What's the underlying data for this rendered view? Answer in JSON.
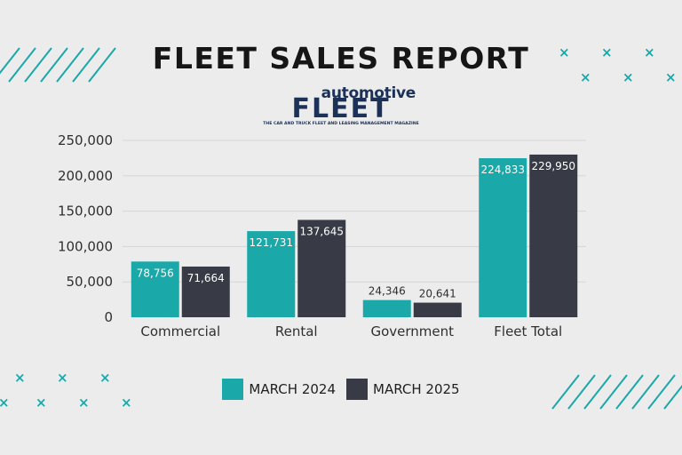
{
  "title": "FLEET SALES REPORT",
  "logo": {
    "top": "automotive",
    "main": "FLEET",
    "sub": "THE CAR AND TRUCK FLEET AND LEASING MANAGEMENT MAGAZINE"
  },
  "colors": {
    "series_2024": "#1aa8a8",
    "series_2025": "#383b45",
    "accent": "#1aa8a8"
  },
  "chart_data": {
    "type": "bar",
    "categories": [
      "Commercial",
      "Rental",
      "Government",
      "Fleet Total"
    ],
    "series": [
      {
        "name": "MARCH 2024",
        "values": [
          78756,
          121731,
          24346,
          224833
        ],
        "labels": [
          "78,756",
          "121,731",
          "24,346",
          "224,833"
        ]
      },
      {
        "name": "MARCH 2025",
        "values": [
          71664,
          137645,
          20641,
          229950
        ],
        "labels": [
          "71,664",
          "137,645",
          "20,641",
          "229,950"
        ]
      }
    ],
    "yticks": [
      "0",
      "50,000",
      "100,000",
      "150,000",
      "200,000",
      "250,000"
    ],
    "ylim": [
      0,
      250000
    ],
    "grid": true,
    "legend": "bottom-center"
  }
}
